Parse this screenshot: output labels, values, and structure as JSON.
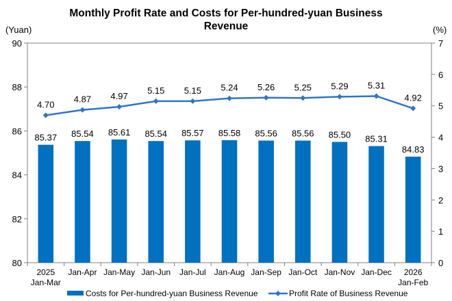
{
  "chart_data": {
    "type": "bar+line",
    "title_lines": [
      "Monthly Profit Rate and Costs for Per-hundred-yuan Business",
      "Revenue"
    ],
    "categories": [
      [
        "2025",
        "Jan-Mar"
      ],
      [
        "Jan-Apr"
      ],
      [
        "Jan-May"
      ],
      [
        "Jan-Jun"
      ],
      [
        "Jan-Jul"
      ],
      [
        "Jan-Aug"
      ],
      [
        "Jan-Sep"
      ],
      [
        "Jan-Oct"
      ],
      [
        "Jan-Nov"
      ],
      [
        "Jan-Dec"
      ],
      [
        "2026",
        "Jan-Feb"
      ]
    ],
    "left_axis": {
      "unit": "(Yuan)",
      "min": 80,
      "max": 90,
      "ticks": [
        80,
        82,
        84,
        86,
        88,
        90
      ]
    },
    "right_axis": {
      "unit": "(%)",
      "min": 0,
      "max": 7,
      "ticks": [
        0,
        1,
        2,
        3,
        4,
        5,
        6,
        7
      ]
    },
    "series": [
      {
        "name": "Costs for Per-hundred-yuan Business Revenue",
        "kind": "bar",
        "axis": "left",
        "color": "#0070C0",
        "values": [
          85.37,
          85.54,
          85.61,
          85.54,
          85.57,
          85.58,
          85.56,
          85.56,
          85.5,
          85.31,
          84.83
        ],
        "labels": [
          "85.37",
          "85.54",
          "85.61",
          "85.54",
          "85.57",
          "85.58",
          "85.56",
          "85.56",
          "85.50",
          "85.31",
          "84.83"
        ]
      },
      {
        "name": "Profit Rate of Business Revenue",
        "kind": "line",
        "axis": "right",
        "color": "#2E75C8",
        "values": [
          4.7,
          4.87,
          4.97,
          5.15,
          5.15,
          5.24,
          5.26,
          5.25,
          5.29,
          5.31,
          4.92
        ],
        "labels": [
          "4.70",
          "4.87",
          "4.97",
          "5.15",
          "5.15",
          "5.24",
          "5.26",
          "5.25",
          "5.29",
          "5.31",
          "4.92"
        ]
      }
    ],
    "legend": [
      "Costs for Per-hundred-yuan Business Revenue",
      "Profit Rate of Business Revenue"
    ],
    "legend_position": "bottom",
    "grid": false
  }
}
